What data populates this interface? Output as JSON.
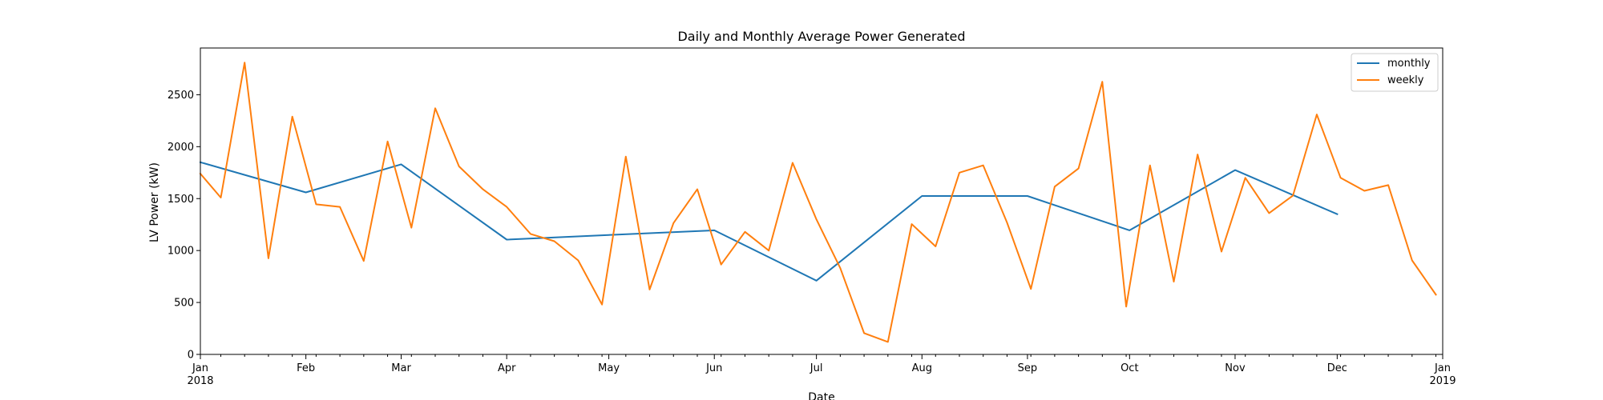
{
  "chart_data": {
    "type": "line",
    "title": "Daily and Monthly Average Power Generated",
    "xlabel": "Date",
    "ylabel": "LV Power (kW)",
    "xlim": [
      "2018-01-01",
      "2019-01-01"
    ],
    "ylim": [
      0,
      2950
    ],
    "y_ticks": [
      0,
      500,
      1000,
      1500,
      2000,
      2500
    ],
    "x_ticks": [
      {
        "date": "2018-01-01",
        "label": "Jan",
        "label2": "2018"
      },
      {
        "date": "2018-02-01",
        "label": "Feb",
        "label2": ""
      },
      {
        "date": "2018-03-01",
        "label": "Mar",
        "label2": ""
      },
      {
        "date": "2018-04-01",
        "label": "Apr",
        "label2": ""
      },
      {
        "date": "2018-05-01",
        "label": "May",
        "label2": ""
      },
      {
        "date": "2018-06-01",
        "label": "Jun",
        "label2": ""
      },
      {
        "date": "2018-07-01",
        "label": "Jul",
        "label2": ""
      },
      {
        "date": "2018-08-01",
        "label": "Aug",
        "label2": ""
      },
      {
        "date": "2018-09-01",
        "label": "Sep",
        "label2": ""
      },
      {
        "date": "2018-10-01",
        "label": "Oct",
        "label2": ""
      },
      {
        "date": "2018-11-01",
        "label": "Nov",
        "label2": ""
      },
      {
        "date": "2018-12-01",
        "label": "Dec",
        "label2": ""
      },
      {
        "date": "2019-01-01",
        "label": "Jan",
        "label2": "2019"
      }
    ],
    "minor_ticks": true,
    "grid": false,
    "legend_position": "top-right",
    "series": [
      {
        "name": "monthly",
        "color": "#1f77b4",
        "points": [
          [
            "2018-01-01",
            1850
          ],
          [
            "2018-02-01",
            1560
          ],
          [
            "2018-03-01",
            1830
          ],
          [
            "2018-04-01",
            1105
          ],
          [
            "2018-05-01",
            1150
          ],
          [
            "2018-06-01",
            1195
          ],
          [
            "2018-07-01",
            710
          ],
          [
            "2018-08-01",
            1525
          ],
          [
            "2018-09-01",
            1525
          ],
          [
            "2018-10-01",
            1195
          ],
          [
            "2018-11-01",
            1775
          ],
          [
            "2018-12-01",
            1350
          ]
        ]
      },
      {
        "name": "weekly",
        "color": "#ff7f0e",
        "points": [
          [
            "2018-01-01",
            1740
          ],
          [
            "2018-01-07",
            1510
          ],
          [
            "2018-01-14",
            2810
          ],
          [
            "2018-01-21",
            925
          ],
          [
            "2018-01-28",
            2290
          ],
          [
            "2018-02-04",
            1445
          ],
          [
            "2018-02-11",
            1420
          ],
          [
            "2018-02-18",
            900
          ],
          [
            "2018-02-25",
            2050
          ],
          [
            "2018-03-04",
            1220
          ],
          [
            "2018-03-11",
            2370
          ],
          [
            "2018-03-18",
            1810
          ],
          [
            "2018-03-25",
            1590
          ],
          [
            "2018-04-01",
            1420
          ],
          [
            "2018-04-08",
            1160
          ],
          [
            "2018-04-15",
            1090
          ],
          [
            "2018-04-22",
            905
          ],
          [
            "2018-04-29",
            480
          ],
          [
            "2018-05-06",
            1905
          ],
          [
            "2018-05-13",
            625
          ],
          [
            "2018-05-20",
            1265
          ],
          [
            "2018-05-27",
            1590
          ],
          [
            "2018-06-03",
            865
          ],
          [
            "2018-06-10",
            1180
          ],
          [
            "2018-06-17",
            1000
          ],
          [
            "2018-06-24",
            1845
          ],
          [
            "2018-07-01",
            1300
          ],
          [
            "2018-07-08",
            830
          ],
          [
            "2018-07-15",
            205
          ],
          [
            "2018-07-22",
            120
          ],
          [
            "2018-07-29",
            1255
          ],
          [
            "2018-08-05",
            1040
          ],
          [
            "2018-08-12",
            1750
          ],
          [
            "2018-08-19",
            1820
          ],
          [
            "2018-08-26",
            1270
          ],
          [
            "2018-09-02",
            630
          ],
          [
            "2018-09-09",
            1615
          ],
          [
            "2018-09-16",
            1790
          ],
          [
            "2018-09-23",
            2625
          ],
          [
            "2018-09-30",
            460
          ],
          [
            "2018-10-07",
            1820
          ],
          [
            "2018-10-14",
            700
          ],
          [
            "2018-10-21",
            1925
          ],
          [
            "2018-10-28",
            990
          ],
          [
            "2018-11-04",
            1700
          ],
          [
            "2018-11-11",
            1360
          ],
          [
            "2018-11-18",
            1530
          ],
          [
            "2018-11-25",
            2310
          ],
          [
            "2018-12-02",
            1700
          ],
          [
            "2018-12-09",
            1575
          ],
          [
            "2018-12-16",
            1630
          ],
          [
            "2018-12-23",
            905
          ],
          [
            "2018-12-30",
            575
          ]
        ]
      }
    ]
  }
}
